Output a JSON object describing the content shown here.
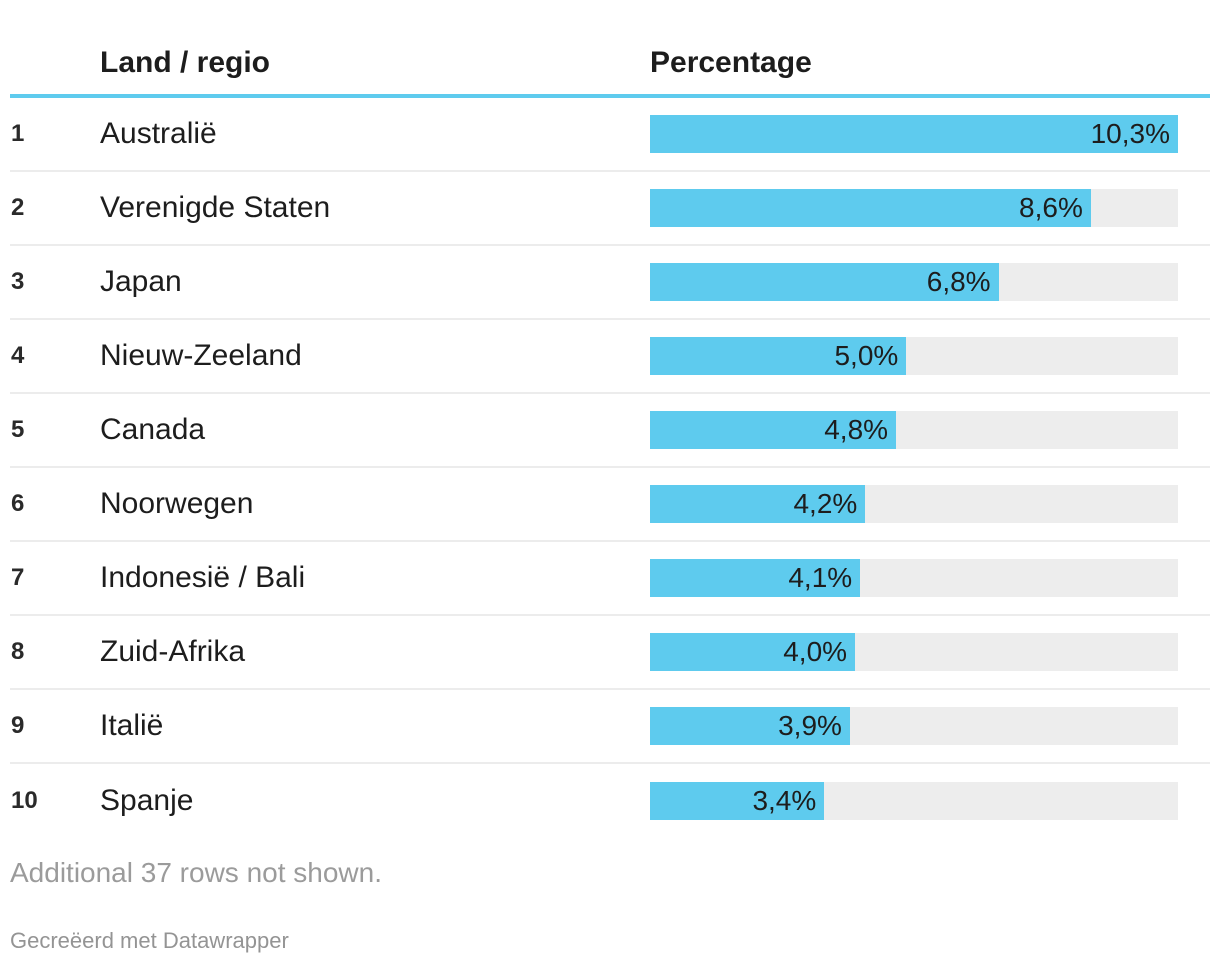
{
  "colors": {
    "bar_fill": "#5ecbee",
    "bar_track": "#ededed",
    "header_rule": "#5ecbee",
    "row_divider": "#ececec",
    "text_dark": "#1d1d1d",
    "text_gray": "#9b9b9b"
  },
  "header": {
    "rank_label": "",
    "land_label": "Land / regio",
    "percentage_label": "Percentage"
  },
  "bar_scale_max": 10.3,
  "rows": [
    {
      "rank": "1",
      "land": "Australië",
      "value": 10.3,
      "percent_label": "10,3%"
    },
    {
      "rank": "2",
      "land": "Verenigde Staten",
      "value": 8.6,
      "percent_label": "8,6%"
    },
    {
      "rank": "3",
      "land": "Japan",
      "value": 6.8,
      "percent_label": "6,8%"
    },
    {
      "rank": "4",
      "land": "Nieuw-Zeeland",
      "value": 5.0,
      "percent_label": "5,0%"
    },
    {
      "rank": "5",
      "land": "Canada",
      "value": 4.8,
      "percent_label": "4,8%"
    },
    {
      "rank": "6",
      "land": "Noorwegen",
      "value": 4.2,
      "percent_label": "4,2%"
    },
    {
      "rank": "7",
      "land": "Indonesië / Bali",
      "value": 4.1,
      "percent_label": "4,1%"
    },
    {
      "rank": "8",
      "land": "Zuid-Afrika",
      "value": 4.0,
      "percent_label": "4,0%"
    },
    {
      "rank": "9",
      "land": "Italië",
      "value": 3.9,
      "percent_label": "3,9%"
    },
    {
      "rank": "10",
      "land": "Spanje",
      "value": 3.4,
      "percent_label": "3,4%"
    }
  ],
  "footer": {
    "more_rows_note": "Additional 37 rows not shown.",
    "attribution": "Gecreëerd met Datawrapper"
  },
  "chart_data": {
    "type": "bar",
    "orientation": "horizontal",
    "columns": [
      "Land / regio",
      "Percentage"
    ],
    "categories": [
      "Australië",
      "Verenigde Staten",
      "Japan",
      "Nieuw-Zeeland",
      "Canada",
      "Noorwegen",
      "Indonesië / Bali",
      "Zuid-Afrika",
      "Italië",
      "Spanje"
    ],
    "ranks": [
      1,
      2,
      3,
      4,
      5,
      6,
      7,
      8,
      9,
      10
    ],
    "values": [
      10.3,
      8.6,
      6.8,
      5.0,
      4.8,
      4.2,
      4.1,
      4.0,
      3.9,
      3.4
    ],
    "value_labels": [
      "10,3%",
      "8,6%",
      "6,8%",
      "5,0%",
      "4,8%",
      "4,2%",
      "4,1%",
      "4,0%",
      "3,9%",
      "3,4%"
    ],
    "value_suffix": "%",
    "title": "",
    "xlabel": "",
    "ylabel": "",
    "xlim": [
      0,
      10.3
    ],
    "grid": false,
    "legend": false,
    "note": "Additional 37 rows not shown."
  }
}
